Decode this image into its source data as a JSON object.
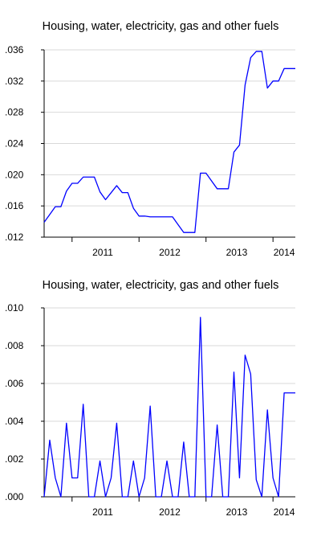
{
  "chart_data": [
    {
      "type": "line",
      "title": "Housing, water, electricity, gas and other fuels",
      "xlabel": "",
      "ylabel": "",
      "x_range": [
        "2010-08",
        "2014-05"
      ],
      "x_ticks": [
        "2011",
        "2012",
        "2013",
        "2014"
      ],
      "ylim": [
        0.012,
        0.036
      ],
      "y_ticks": [
        ".012",
        ".016",
        ".020",
        ".024",
        ".028",
        ".032",
        ".036"
      ],
      "grid": "horizontal",
      "line_color": "#0000ff",
      "series": [
        {
          "x": [
            "2010-08",
            "2010-09",
            "2010-10",
            "2010-11",
            "2010-12",
            "2011-01",
            "2011-02",
            "2011-03",
            "2011-04",
            "2011-05",
            "2011-06",
            "2011-07",
            "2011-08",
            "2011-09",
            "2011-10",
            "2011-11",
            "2011-12",
            "2012-01",
            "2012-02",
            "2012-03",
            "2012-04",
            "2012-05",
            "2012-06",
            "2012-07",
            "2012-08",
            "2012-09",
            "2012-10",
            "2012-11",
            "2012-12",
            "2013-01",
            "2013-02",
            "2013-03",
            "2013-04",
            "2013-05",
            "2013-06",
            "2013-07",
            "2013-08",
            "2013-09",
            "2013-10",
            "2013-11",
            "2013-12",
            "2014-01",
            "2014-02",
            "2014-03",
            "2014-04",
            "2014-05"
          ],
          "values": [
            0.0139,
            0.0149,
            0.0159,
            0.0159,
            0.0179,
            0.0189,
            0.0189,
            0.0197,
            0.0197,
            0.0197,
            0.0178,
            0.0168,
            0.0177,
            0.0186,
            0.0177,
            0.0177,
            0.0157,
            0.0147,
            0.0147,
            0.0146,
            0.0146,
            0.0146,
            0.0146,
            0.0146,
            0.0136,
            0.0126,
            0.0126,
            0.0126,
            0.0202,
            0.0202,
            0.0192,
            0.0182,
            0.0182,
            0.0182,
            0.0229,
            0.0238,
            0.0315,
            0.035,
            0.0358,
            0.0358,
            0.0311,
            0.032,
            0.032,
            0.0336,
            0.0336,
            0.0336
          ]
        }
      ]
    },
    {
      "type": "line",
      "title": "Housing, water, electricity, gas and other fuels",
      "xlabel": "",
      "ylabel": "",
      "x_range": [
        "2010-08",
        "2014-05"
      ],
      "x_ticks": [
        "2011",
        "2012",
        "2013",
        "2014"
      ],
      "ylim": [
        0.0,
        0.01
      ],
      "y_ticks": [
        ".000",
        ".002",
        ".004",
        ".006",
        ".008",
        ".010"
      ],
      "grid": "horizontal",
      "line_color": "#0000ff",
      "series": [
        {
          "x": [
            "2010-08",
            "2010-09",
            "2010-10",
            "2010-11",
            "2010-12",
            "2011-01",
            "2011-02",
            "2011-03",
            "2011-04",
            "2011-05",
            "2011-06",
            "2011-07",
            "2011-08",
            "2011-09",
            "2011-10",
            "2011-11",
            "2011-12",
            "2012-01",
            "2012-02",
            "2012-03",
            "2012-04",
            "2012-05",
            "2012-06",
            "2012-07",
            "2012-08",
            "2012-09",
            "2012-10",
            "2012-11",
            "2012-12",
            "2013-01",
            "2013-02",
            "2013-03",
            "2013-04",
            "2013-05",
            "2013-06",
            "2013-07",
            "2013-08",
            "2013-09",
            "2013-10",
            "2013-11",
            "2013-12",
            "2014-01",
            "2014-02",
            "2014-03",
            "2014-04",
            "2014-05"
          ],
          "values": [
            0.0,
            0.003,
            0.001,
            0.0,
            0.0039,
            0.001,
            0.001,
            0.0049,
            0.0,
            0.0,
            0.0019,
            0.0,
            0.001,
            0.0039,
            0.0,
            0.0,
            0.0019,
            0.0,
            0.001,
            0.0048,
            0.0,
            0.0,
            0.0019,
            0.0,
            0.0,
            0.0029,
            0.0,
            0.0,
            0.0095,
            0.0,
            0.0,
            0.0038,
            0.0,
            0.0,
            0.0066,
            0.001,
            0.0075,
            0.0065,
            0.0009,
            0.0,
            0.0046,
            0.001,
            0.0,
            0.0055,
            0.0055,
            0.0055
          ]
        }
      ]
    }
  ]
}
